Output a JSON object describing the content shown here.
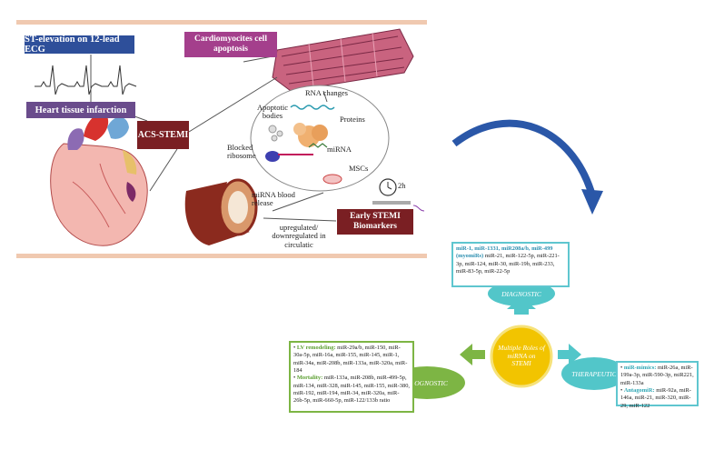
{
  "top_panel": {
    "ecg_label": "ST-elevation on 12-lead ECG",
    "heart_label": "Heart tissue infarction",
    "cardiomyocyte_label": "Cardiomyocites cell apoptosis",
    "acs_label": "ACS-STEMI",
    "rna_changes": "RNA changes",
    "apoptotic_bodies": "Apoptotic bodies",
    "proteins": "Proteins",
    "blocked_ribosome": "Blocked ribosome",
    "mirna": "miRNA",
    "mscs": "MSCs",
    "blood_release": "miRNA blood release",
    "time_label": "2h",
    "regulation_label": "upregulated/ downregulated in circulatic",
    "biomarkers_label": "Early STEMI Biomarkers"
  },
  "hub": {
    "center": "Multiple Roles of miRNA on STEMI",
    "diagnostic": "DIAGNOSTIC",
    "prognostic": "PROGNOSTIC",
    "therapeutic": "THERAPEUTIC"
  },
  "diagnostic_panel": {
    "heading": "miR-1, miR-1331, miR208a/b, miR-499 (myomiRs)",
    "body": "miR-21, miR-122-5p, miR-221-3p, miR-124, miR-30, miR-19b, miR-233, miR-83-5p, miR-22-5p"
  },
  "prognostic_panel": {
    "lv_label": "LV remodeling:",
    "lv_body": "miR-29a/b, miR-150, miR-30a-5p, miR-16a, miR-155, miR-145, miR-1, miR-34a, miR-208b, miR-133a, miR-320a, miR-184",
    "mort_label": "Mortality:",
    "mort_body": "miR-133a, miR-208b, miR-499-5p, miR-134, miR-328, miR-145, miR-155, miR-380, miR-192, miR-194, miR-34, miR-320a, miR-26b-5p, miR-660-5p, miR-122/133b ratio"
  },
  "therapeutic_panel": {
    "mimics_label": "miR-mimics:",
    "mimics_body": "miR-26a, miR-199a-3p, miR-590-3p, miR221, miR-133a",
    "anta_label": "AntagomiR:",
    "anta_body": "miR-92a, miR-146a, miR-21, miR-320, miR-29, miR-122"
  },
  "colors": {
    "ecg_box": "#2e4f9a",
    "heart_box": "#6a4c8c",
    "cardio_box": "#a43f8c",
    "acs_box": "#7a1f23",
    "hub_yellow": "#f2c400",
    "hub_teal": "#52c6c9",
    "hub_green": "#7db544",
    "curved_arrow": "#2a57a8"
  }
}
